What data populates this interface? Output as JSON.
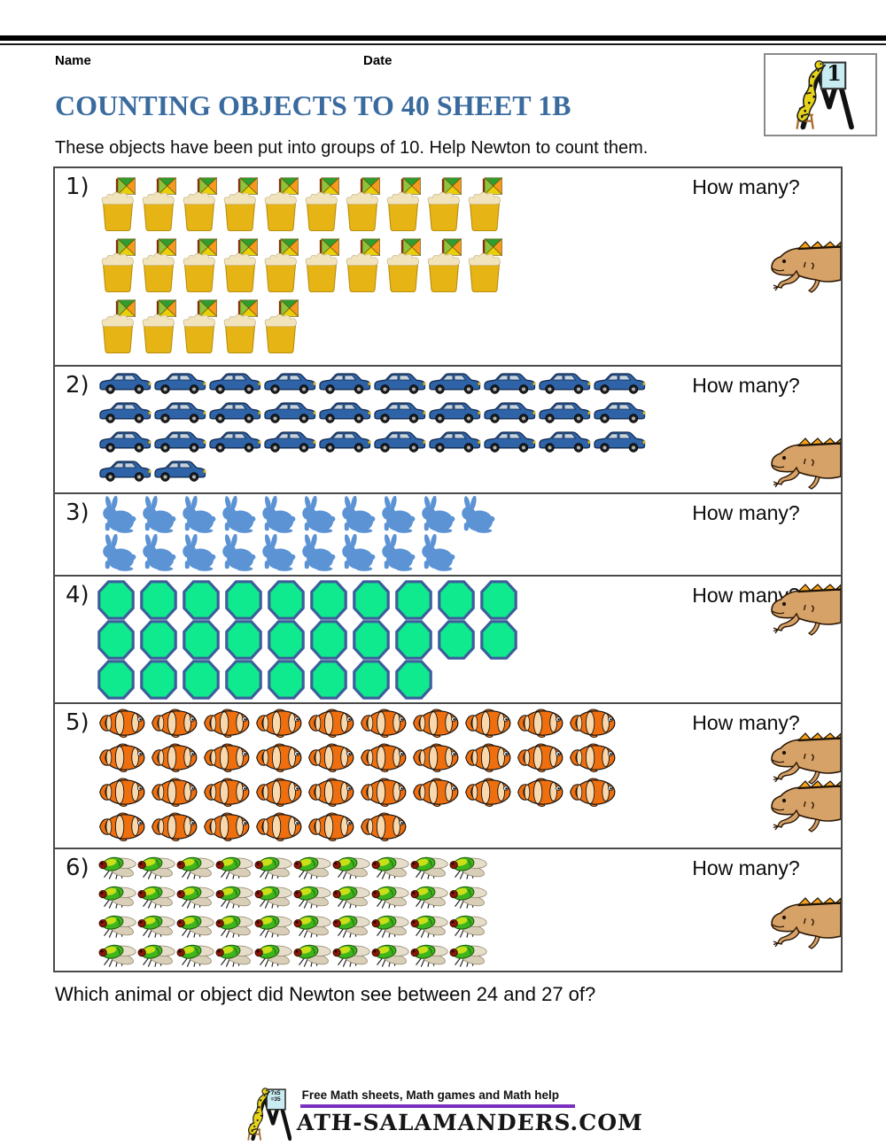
{
  "header": {
    "name_label": "Name",
    "date_label": "Date"
  },
  "logo": {
    "badge": "1"
  },
  "title": "COUNTING OBJECTS TO 40 SHEET 1B",
  "instruction": "These objects have been put into groups of 10. Help Newton to count them.",
  "how_many_label": "How many?",
  "rows": [
    {
      "label": "1)",
      "object": "sandcastle",
      "groups": [
        10,
        10,
        5
      ],
      "total": 25,
      "newts": 1
    },
    {
      "label": "2)",
      "object": "car",
      "groups": [
        10,
        10,
        10,
        2
      ],
      "total": 32,
      "newts": 1
    },
    {
      "label": "3)",
      "object": "rabbit",
      "groups": [
        10,
        9
      ],
      "total": 19,
      "newts": 0
    },
    {
      "label": "4)",
      "object": "octagon",
      "groups": [
        10,
        10,
        8
      ],
      "total": 28,
      "newts": 1
    },
    {
      "label": "5)",
      "object": "fish",
      "groups": [
        10,
        10,
        10,
        6
      ],
      "total": 36,
      "newts": 2
    },
    {
      "label": "6)",
      "object": "fly",
      "groups": [
        10,
        10,
        10,
        10
      ],
      "total": 40,
      "newts": 1
    }
  ],
  "question": "Which animal or object did Newton see between 24 and 27 of?",
  "footer": {
    "tagline": "Free Math sheets, Math games and Math help",
    "site_text": "ATH-SALAMANDERS.COM",
    "board_line1": "7x5",
    "board_line2": "=35"
  },
  "colors": {
    "title_blue": "#3a6b9e",
    "purple_rule": "#7b2fbe",
    "castle_gold": "#e6b414",
    "car_blue": "#2e63a8",
    "rabbit_blue": "#5b93d5",
    "octagon_green": "#10ea8e",
    "octagon_border": "#3c5e9a",
    "fish_orange": "#ef6f0e",
    "fly_green": "#3fb51d",
    "newt_tan": "#d7a267"
  }
}
